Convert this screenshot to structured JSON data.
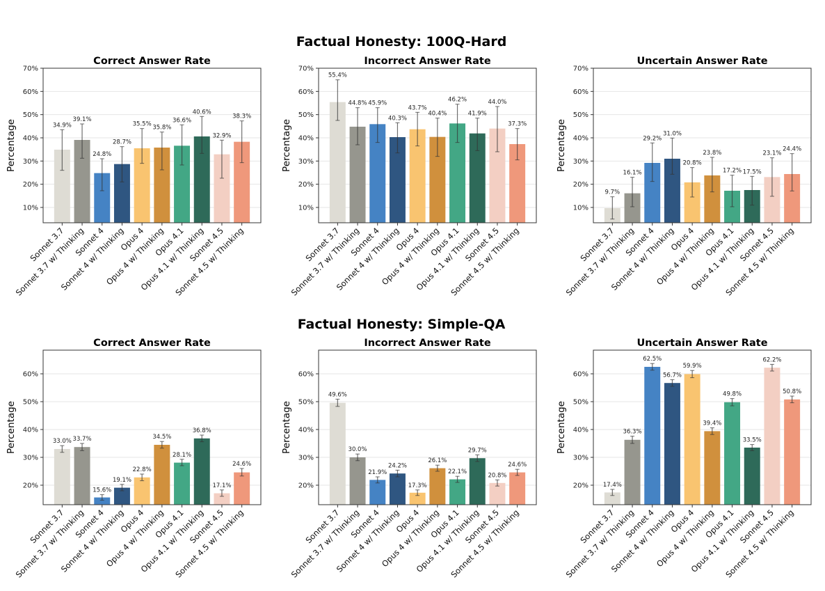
{
  "sections": [
    {
      "title": "Factual Honesty: 100Q-Hard"
    },
    {
      "title": "Factual Honesty: Simple-QA"
    }
  ],
  "categories": [
    "Sonnet 3.7",
    "Sonnet 3.7 w/ Thinking",
    "Sonnet 4",
    "Sonnet 4 w/ Thinking",
    "Opus 4",
    "Opus 4 w/ Thinking",
    "Opus 4.1",
    "Opus 4.1 w/ Thinking",
    "Sonnet 4.5",
    "Sonnet 4.5 w/ Thinking"
  ],
  "colors": [
    "#dedcd4",
    "#96968e",
    "#4583c4",
    "#2f5681",
    "#f9c470",
    "#d0903d",
    "#43a785",
    "#2e6a59",
    "#f3cfc3",
    "#ef987b"
  ],
  "chart_data": [
    {
      "type": "bar",
      "section": 0,
      "title": "Correct Answer Rate",
      "ylabel": "Percentage",
      "ylim": [
        3.4,
        70
      ],
      "yticks": [
        10,
        20,
        30,
        40,
        50,
        60,
        70
      ],
      "grid": true,
      "values": [
        34.9,
        39.1,
        24.8,
        28.7,
        35.5,
        35.8,
        36.6,
        40.6,
        32.9,
        38.3
      ],
      "err_low": [
        26.0,
        31.2,
        17.2,
        21.0,
        29.0,
        26.2,
        28.3,
        33.3,
        22.6,
        29.3
      ],
      "err_high": [
        43.5,
        46.0,
        31.0,
        36.2,
        44.0,
        42.5,
        45.6,
        49.2,
        39.0,
        47.3
      ]
    },
    {
      "type": "bar",
      "section": 0,
      "title": "Incorrect Answer Rate",
      "ylabel": "Percentage",
      "ylim": [
        3.4,
        70
      ],
      "yticks": [
        10,
        20,
        30,
        40,
        50,
        60,
        70
      ],
      "grid": true,
      "values": [
        55.4,
        44.8,
        45.9,
        40.3,
        43.7,
        40.4,
        46.2,
        41.9,
        44.0,
        37.3
      ],
      "err_low": [
        47.5,
        37.0,
        38.0,
        33.5,
        36.5,
        32.0,
        38.0,
        34.5,
        34.0,
        30.5
      ],
      "err_high": [
        65.0,
        53.0,
        53.0,
        46.5,
        51.0,
        48.5,
        54.5,
        48.5,
        53.5,
        44.0
      ]
    },
    {
      "type": "bar",
      "section": 0,
      "title": "Uncertain Answer Rate",
      "ylabel": "Percentage",
      "ylim": [
        3.4,
        70
      ],
      "yticks": [
        10,
        20,
        30,
        40,
        50,
        60,
        70
      ],
      "grid": true,
      "values": [
        9.7,
        16.1,
        29.2,
        31.0,
        20.8,
        23.8,
        17.2,
        17.5,
        23.1,
        24.4
      ],
      "err_low": [
        5.0,
        10.3,
        21.2,
        24.3,
        14.5,
        16.7,
        10.3,
        11.0,
        14.8,
        17.1
      ],
      "err_high": [
        14.6,
        23.0,
        37.8,
        39.9,
        27.2,
        31.6,
        23.9,
        23.4,
        31.4,
        33.2
      ]
    },
    {
      "type": "bar",
      "section": 1,
      "title": "Correct Answer Rate",
      "ylabel": "Percentage",
      "ylim": [
        13,
        68.5
      ],
      "yticks": [
        20,
        30,
        40,
        50,
        60
      ],
      "grid": true,
      "values": [
        33.0,
        33.7,
        15.6,
        19.1,
        22.8,
        34.5,
        28.1,
        36.8,
        17.1,
        24.6
      ],
      "err_low": [
        31.8,
        32.4,
        14.6,
        18.0,
        21.6,
        33.3,
        27.0,
        35.6,
        16.0,
        23.3
      ],
      "err_high": [
        34.2,
        35.0,
        16.6,
        20.3,
        24.0,
        35.7,
        29.3,
        38.0,
        18.3,
        26.0
      ]
    },
    {
      "type": "bar",
      "section": 1,
      "title": "Incorrect Answer Rate",
      "ylabel": "Percentage",
      "ylim": [
        13,
        68.5
      ],
      "yticks": [
        20,
        30,
        40,
        50,
        60
      ],
      "grid": true,
      "values": [
        49.6,
        30.0,
        21.9,
        24.2,
        17.3,
        26.1,
        22.1,
        29.7,
        20.8,
        24.6
      ],
      "err_low": [
        48.3,
        28.8,
        20.8,
        23.0,
        16.3,
        25.0,
        21.0,
        28.5,
        19.7,
        23.5
      ],
      "err_high": [
        50.9,
        31.2,
        23.0,
        25.4,
        18.3,
        27.2,
        23.2,
        30.9,
        21.9,
        25.7
      ]
    },
    {
      "type": "bar",
      "section": 1,
      "title": "Uncertain Answer Rate",
      "ylabel": "Percentage",
      "ylim": [
        13,
        68.5
      ],
      "yticks": [
        20,
        30,
        40,
        50,
        60
      ],
      "grid": true,
      "values": [
        17.4,
        36.3,
        62.5,
        56.7,
        59.9,
        39.4,
        49.8,
        33.5,
        62.2,
        50.8
      ],
      "err_low": [
        16.3,
        35.0,
        61.3,
        55.5,
        58.6,
        38.2,
        48.5,
        32.4,
        61.0,
        49.6
      ],
      "err_high": [
        18.5,
        37.6,
        63.7,
        57.9,
        61.2,
        40.6,
        51.1,
        34.6,
        63.4,
        52.0
      ]
    }
  ]
}
